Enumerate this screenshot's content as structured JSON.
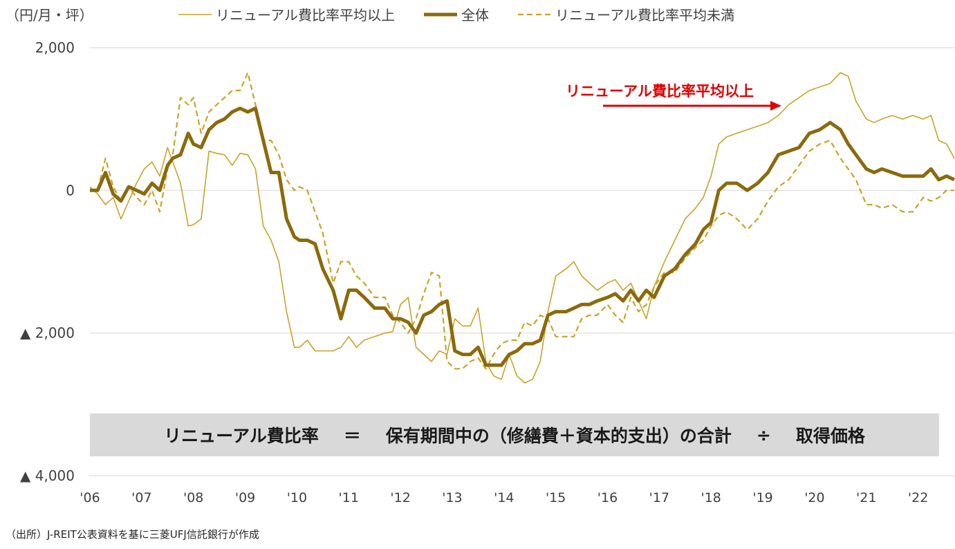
{
  "unit_label": "（円/月・坪）",
  "source_note": "（出所）J-REIT公表資料を基に三菱UFJ信託銀行が作成",
  "formula": {
    "lhs": "リニューアル費比率",
    "eq": "＝",
    "rhs": "保有期間中の（修繕費＋資本的支出）の合計",
    "div": "÷",
    "denom": "取得価格"
  },
  "annotation": "リニューアル費比率平均以上",
  "colors": {
    "thin": "#c9a227",
    "bold": "#8a6a0c",
    "dashed": "#c9a227",
    "annot": "#e00000",
    "grid": "#d9d9d9"
  },
  "chart_data": {
    "type": "line",
    "title": "",
    "xlabel": "",
    "ylabel": "（円/月・坪）",
    "ylim": [
      -4000,
      2000
    ],
    "yticks": [
      2000,
      0,
      -2000,
      -4000
    ],
    "ytick_labels": [
      "2,000",
      "0",
      "▲ 2,000",
      "▲ 4,000"
    ],
    "xlim": [
      2006,
      2022.7
    ],
    "xticks": [
      2006,
      2007,
      2008,
      2009,
      2010,
      2011,
      2012,
      2013,
      2014,
      2015,
      2016,
      2017,
      2018,
      2019,
      2020,
      2021,
      2022
    ],
    "xtick_labels": [
      "'06",
      "'07",
      "'08",
      "'09",
      "'10",
      "'11",
      "'12",
      "'13",
      "'14",
      "'15",
      "'16",
      "'17",
      "'18",
      "'19",
      "'20",
      "'21",
      "'22"
    ],
    "series": [
      {
        "name": "リニューアル費比率平均以上",
        "style": "thin",
        "x": [
          2006.0,
          2006.15,
          2006.3,
          2006.45,
          2006.6,
          2006.75,
          2006.9,
          2007.05,
          2007.2,
          2007.35,
          2007.5,
          2007.6,
          2007.75,
          2007.9,
          2008.0,
          2008.15,
          2008.3,
          2008.45,
          2008.6,
          2008.75,
          2008.9,
          2009.05,
          2009.2,
          2009.35,
          2009.5,
          2009.65,
          2009.8,
          2009.95,
          2010.05,
          2010.2,
          2010.35,
          2010.5,
          2010.7,
          2010.85,
          2011.0,
          2011.15,
          2011.3,
          2011.5,
          2011.7,
          2011.85,
          2012.0,
          2012.15,
          2012.3,
          2012.45,
          2012.6,
          2012.75,
          2012.9,
          2013.05,
          2013.2,
          2013.35,
          2013.5,
          2013.65,
          2013.8,
          2013.95,
          2014.1,
          2014.25,
          2014.4,
          2014.55,
          2014.7,
          2014.85,
          2015.0,
          2015.2,
          2015.35,
          2015.5,
          2015.65,
          2015.8,
          2016.0,
          2016.15,
          2016.3,
          2016.45,
          2016.6,
          2016.75,
          2016.9,
          2017.1,
          2017.3,
          2017.5,
          2017.7,
          2017.85,
          2018.0,
          2018.15,
          2018.3,
          2018.5,
          2018.7,
          2018.9,
          2019.1,
          2019.3,
          2019.5,
          2019.7,
          2019.9,
          2020.1,
          2020.3,
          2020.5,
          2020.65,
          2020.8,
          2021.0,
          2021.15,
          2021.3,
          2021.5,
          2021.7,
          2021.9,
          2022.1,
          2022.25,
          2022.4,
          2022.55,
          2022.7
        ],
        "y": [
          50,
          -50,
          -200,
          -100,
          -400,
          -150,
          100,
          300,
          400,
          200,
          600,
          400,
          100,
          -500,
          -480,
          -400,
          550,
          520,
          500,
          350,
          520,
          500,
          300,
          -500,
          -700,
          -1000,
          -1700,
          -2200,
          -2200,
          -2100,
          -2250,
          -2250,
          -2250,
          -2200,
          -2050,
          -2200,
          -2100,
          -2050,
          -2000,
          -1980,
          -1600,
          -1500,
          -2200,
          -2300,
          -2400,
          -2250,
          -2300,
          -1800,
          -1900,
          -1900,
          -1650,
          -2400,
          -2600,
          -2650,
          -2300,
          -2600,
          -2700,
          -2650,
          -2400,
          -1700,
          -1200,
          -1100,
          -1000,
          -1200,
          -1300,
          -1400,
          -1300,
          -1250,
          -1400,
          -1300,
          -1550,
          -1800,
          -1350,
          -1000,
          -700,
          -400,
          -250,
          -100,
          200,
          650,
          750,
          800,
          850,
          900,
          950,
          1050,
          1200,
          1300,
          1400,
          1450,
          1500,
          1650,
          1600,
          1250,
          1000,
          950,
          1000,
          1050,
          1000,
          1050,
          1000,
          1050,
          700,
          650,
          450
        ]
      },
      {
        "name": "全体",
        "style": "bold",
        "x": [
          2006.0,
          2006.15,
          2006.3,
          2006.45,
          2006.6,
          2006.75,
          2006.9,
          2007.05,
          2007.2,
          2007.35,
          2007.5,
          2007.6,
          2007.75,
          2007.9,
          2008.0,
          2008.15,
          2008.3,
          2008.45,
          2008.6,
          2008.75,
          2008.9,
          2009.05,
          2009.2,
          2009.35,
          2009.5,
          2009.65,
          2009.8,
          2009.95,
          2010.05,
          2010.2,
          2010.35,
          2010.5,
          2010.7,
          2010.85,
          2011.0,
          2011.15,
          2011.3,
          2011.5,
          2011.7,
          2011.85,
          2012.0,
          2012.15,
          2012.3,
          2012.45,
          2012.6,
          2012.75,
          2012.9,
          2013.05,
          2013.2,
          2013.35,
          2013.5,
          2013.65,
          2013.8,
          2013.95,
          2014.1,
          2014.25,
          2014.4,
          2014.55,
          2014.7,
          2014.85,
          2015.0,
          2015.2,
          2015.35,
          2015.5,
          2015.65,
          2015.8,
          2016.0,
          2016.15,
          2016.3,
          2016.45,
          2016.6,
          2016.75,
          2016.9,
          2017.1,
          2017.3,
          2017.5,
          2017.7,
          2017.85,
          2018.0,
          2018.15,
          2018.3,
          2018.5,
          2018.7,
          2018.9,
          2019.1,
          2019.3,
          2019.5,
          2019.7,
          2019.9,
          2020.1,
          2020.3,
          2020.5,
          2020.65,
          2020.8,
          2021.0,
          2021.15,
          2021.3,
          2021.5,
          2021.7,
          2021.9,
          2022.1,
          2022.25,
          2022.4,
          2022.55,
          2022.7
        ],
        "y": [
          0,
          0,
          250,
          -50,
          -150,
          50,
          0,
          -50,
          100,
          0,
          350,
          450,
          500,
          800,
          650,
          600,
          850,
          950,
          1000,
          1100,
          1150,
          1100,
          1150,
          700,
          250,
          250,
          -400,
          -650,
          -700,
          -700,
          -750,
          -1100,
          -1400,
          -1800,
          -1400,
          -1400,
          -1500,
          -1650,
          -1650,
          -1800,
          -1800,
          -1850,
          -2000,
          -1750,
          -1700,
          -1600,
          -1550,
          -2250,
          -2300,
          -2300,
          -2200,
          -2450,
          -2450,
          -2450,
          -2300,
          -2250,
          -2150,
          -2150,
          -2100,
          -1750,
          -1700,
          -1700,
          -1650,
          -1600,
          -1600,
          -1550,
          -1500,
          -1450,
          -1550,
          -1400,
          -1550,
          -1400,
          -1500,
          -1200,
          -1100,
          -900,
          -750,
          -550,
          -450,
          0,
          100,
          100,
          0,
          100,
          250,
          500,
          550,
          600,
          800,
          850,
          950,
          850,
          650,
          500,
          300,
          250,
          300,
          250,
          200,
          200,
          200,
          300,
          150,
          200,
          150
        ]
      },
      {
        "name": "リニューアル費比率平均未満",
        "style": "dashed",
        "x": [
          2006.0,
          2006.15,
          2006.3,
          2006.45,
          2006.6,
          2006.75,
          2006.9,
          2007.05,
          2007.2,
          2007.35,
          2007.5,
          2007.6,
          2007.75,
          2007.9,
          2008.0,
          2008.15,
          2008.3,
          2008.45,
          2008.6,
          2008.75,
          2008.9,
          2009.05,
          2009.2,
          2009.35,
          2009.5,
          2009.65,
          2009.8,
          2009.95,
          2010.05,
          2010.2,
          2010.35,
          2010.5,
          2010.7,
          2010.85,
          2011.0,
          2011.15,
          2011.3,
          2011.5,
          2011.7,
          2011.85,
          2012.0,
          2012.15,
          2012.3,
          2012.45,
          2012.6,
          2012.75,
          2012.9,
          2013.05,
          2013.2,
          2013.35,
          2013.5,
          2013.65,
          2013.8,
          2013.95,
          2014.1,
          2014.25,
          2014.4,
          2014.55,
          2014.7,
          2014.85,
          2015.0,
          2015.2,
          2015.35,
          2015.5,
          2015.65,
          2015.8,
          2016.0,
          2016.15,
          2016.3,
          2016.45,
          2016.6,
          2016.75,
          2016.9,
          2017.1,
          2017.3,
          2017.5,
          2017.7,
          2017.85,
          2018.0,
          2018.15,
          2018.3,
          2018.5,
          2018.7,
          2018.9,
          2019.1,
          2019.3,
          2019.5,
          2019.7,
          2019.9,
          2020.1,
          2020.3,
          2020.5,
          2020.65,
          2020.8,
          2021.0,
          2021.15,
          2021.3,
          2021.5,
          2021.7,
          2021.9,
          2022.1,
          2022.25,
          2022.4,
          2022.55,
          2022.7
        ],
        "y": [
          0,
          0,
          450,
          50,
          -150,
          50,
          -100,
          -200,
          0,
          -300,
          300,
          500,
          1300,
          1200,
          1300,
          800,
          1100,
          1200,
          1300,
          1400,
          1400,
          1650,
          1200,
          700,
          700,
          500,
          150,
          0,
          50,
          0,
          -300,
          -600,
          -1300,
          -1000,
          -1000,
          -1200,
          -1300,
          -1500,
          -1500,
          -1750,
          -1850,
          -2000,
          -1800,
          -1450,
          -1150,
          -1200,
          -2400,
          -2500,
          -2500,
          -2400,
          -2350,
          -2500,
          -2300,
          -2150,
          -2100,
          -2100,
          -1850,
          -1900,
          -1750,
          -1800,
          -2050,
          -2050,
          -2050,
          -1800,
          -1750,
          -1750,
          -1600,
          -1750,
          -1850,
          -1500,
          -1700,
          -1600,
          -1350,
          -1150,
          -1150,
          -950,
          -800,
          -700,
          -500,
          -350,
          -300,
          -400,
          -550,
          -400,
          -150,
          50,
          150,
          350,
          550,
          650,
          700,
          450,
          300,
          150,
          -200,
          -200,
          -250,
          -200,
          -300,
          -300,
          -100,
          -150,
          -100,
          0,
          0
        ]
      }
    ]
  },
  "legend": [
    {
      "label": "リニューアル費比率平均以上",
      "style": "thin"
    },
    {
      "label": "全体",
      "style": "bold"
    },
    {
      "label": "リニューアル費比率平均未満",
      "style": "dashed"
    }
  ]
}
